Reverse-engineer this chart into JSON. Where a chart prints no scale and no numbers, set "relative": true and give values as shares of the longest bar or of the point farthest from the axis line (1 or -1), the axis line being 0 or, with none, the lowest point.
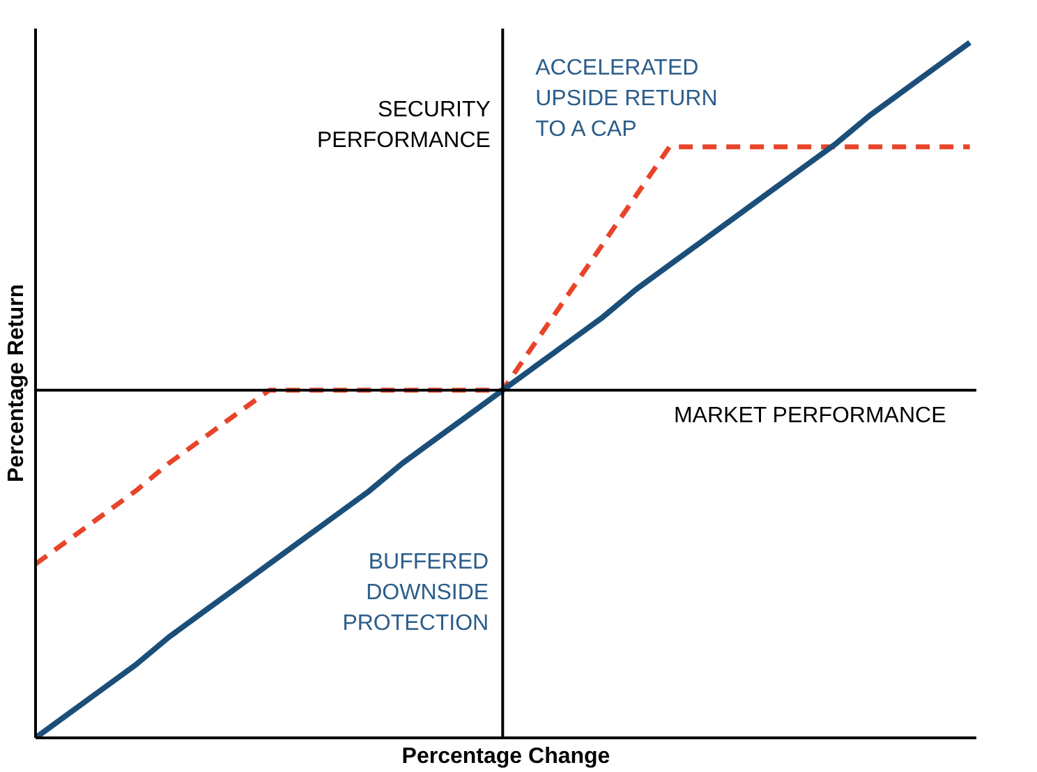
{
  "chart_data": {
    "type": "line",
    "relative": true,
    "xlabel": "Percentage Change",
    "ylabel": "Percentage Return",
    "categories": [
      null,
      null,
      null,
      null,
      null,
      null,
      null,
      null,
      null,
      null,
      null,
      null,
      null,
      null,
      null,
      null,
      null,
      null,
      null,
      null,
      null,
      null,
      null,
      null,
      null,
      null,
      null,
      null,
      null
    ],
    "series": [
      {
        "color": "#e8442a",
        "line_style": "dashed",
        "values": [
          -0.5,
          -0.43,
          -0.36,
          -0.29,
          -0.21,
          -0.14,
          -0.07,
          0,
          0,
          0,
          0,
          0,
          0,
          0,
          0,
          0.14,
          0.28,
          0.42,
          0.56,
          0.7,
          0.7,
          0.7,
          0.7,
          0.7,
          0.7,
          0.7,
          0.7,
          0.7,
          0.7
        ]
      },
      {
        "color": "#1b4f7a",
        "line_style": "solid",
        "values": [
          -1,
          -0.93,
          -0.86,
          -0.79,
          -0.71,
          -0.64,
          -0.57,
          -0.5,
          -0.43,
          -0.36,
          -0.29,
          -0.21,
          -0.14,
          -0.07,
          0,
          0.07,
          0.14,
          0.21,
          0.29,
          0.36,
          0.43,
          0.5,
          0.57,
          0.64,
          0.71,
          0.79,
          0.86,
          0.93,
          1
        ]
      }
    ],
    "ref_lines": [
      {
        "axis": "y",
        "value": 0
      }
    ],
    "annotations": [
      "SECURITY\nPERFORMANCE",
      "ACCELERATED\nUPSIDE RETURN\nTO A CAP",
      "MARKET PERFORMANCE",
      "BUFFERED\nDOWNSIDE\nPROTECTION"
    ]
  }
}
